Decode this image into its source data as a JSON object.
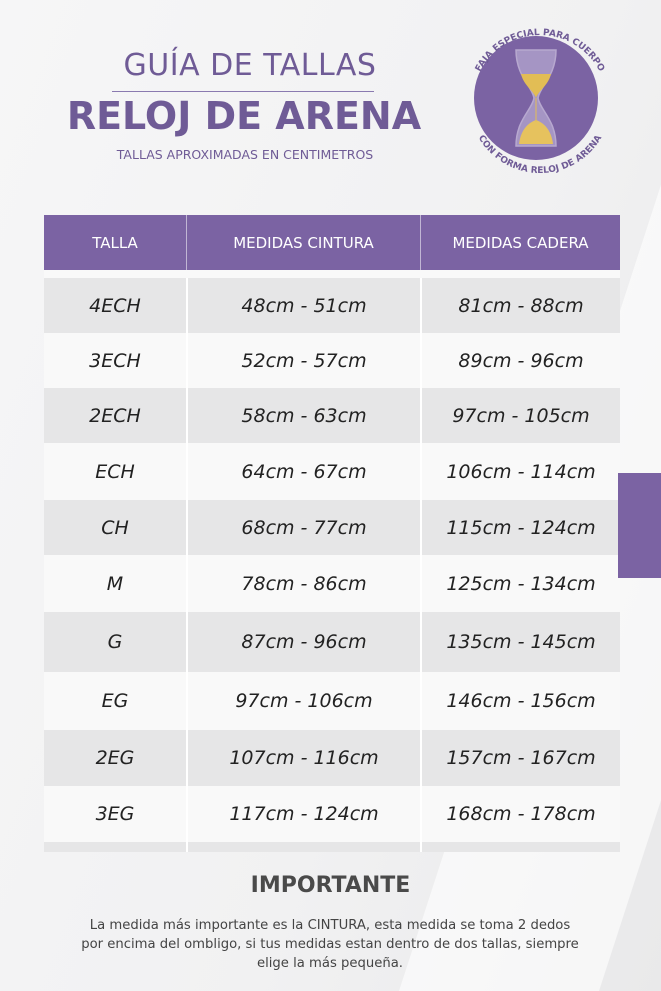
{
  "header": {
    "title_top": "GUÍA DE TALLAS",
    "title_main": "RELOJ DE ARENA",
    "subtitle": "TALLAS APROXIMADAS EN CENTIMETROS"
  },
  "badge": {
    "text_top": "FAJA ESPECIAL PARA CUERPO",
    "text_bottom": "CON FORMA RELOJ DE ARENA",
    "icon": "hourglass-icon"
  },
  "colors": {
    "accent": "#7b63a3",
    "row_alt": "#e6e6e7"
  },
  "table": {
    "columns": [
      "TALLA",
      "MEDIDAS CINTURA",
      "MEDIDAS CADERA"
    ],
    "rows": [
      [
        "4ECH",
        "48cm - 51cm",
        "81cm - 88cm"
      ],
      [
        "3ECH",
        "52cm - 57cm",
        "89cm - 96cm"
      ],
      [
        "2ECH",
        "58cm - 63cm",
        "97cm - 105cm"
      ],
      [
        "ECH",
        "64cm - 67cm",
        "106cm - 114cm"
      ],
      [
        "CH",
        "68cm - 77cm",
        "115cm - 124cm"
      ],
      [
        "M",
        "78cm - 86cm",
        "125cm - 134cm"
      ],
      [
        "G",
        "87cm - 96cm",
        "135cm - 145cm"
      ],
      [
        "EG",
        "97cm - 106cm",
        "146cm - 156cm"
      ],
      [
        "2EG",
        "107cm - 116cm",
        "157cm - 167cm"
      ],
      [
        "3EG",
        "117cm - 124cm",
        "168cm - 178cm"
      ]
    ]
  },
  "important": {
    "title": "IMPORTANTE",
    "text": "La medida más importante es la CINTURA, esta medida se toma 2 dedos por encima del ombligo, si tus medidas estan dentro de dos tallas, siempre elige la más pequeña."
  }
}
